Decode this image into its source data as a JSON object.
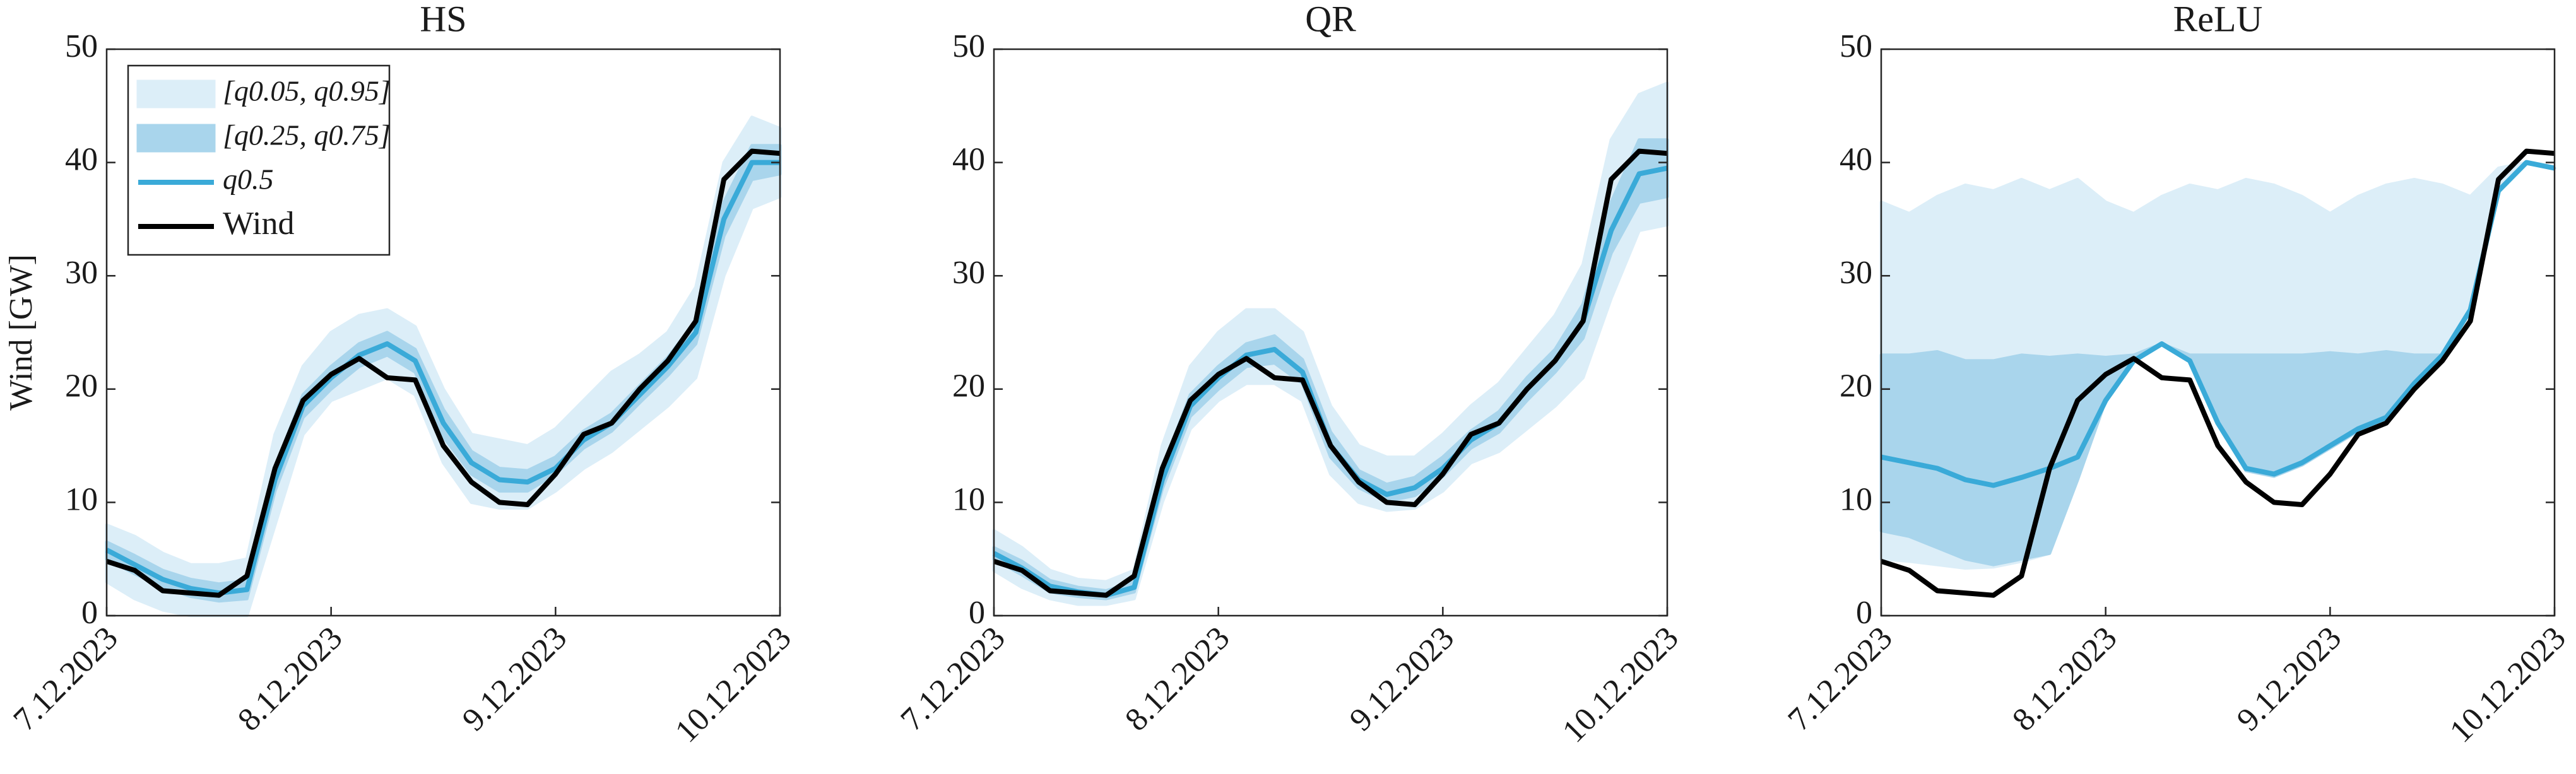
{
  "chart_data": [
    {
      "type": "line",
      "title": "HS",
      "ylabel": "Wind [GW]",
      "legend": true,
      "categories": [
        "7.12.2023",
        null,
        null,
        null,
        null,
        null,
        null,
        null,
        "8.12.2023",
        null,
        null,
        null,
        null,
        null,
        null,
        null,
        "9.12.2023",
        null,
        null,
        null,
        null,
        null,
        null,
        null,
        "10.12.2023"
      ],
      "ylim": [
        0,
        50
      ],
      "yticks": [
        0,
        10,
        20,
        30,
        40,
        50
      ],
      "series": [
        {
          "name": "[q0.05, q0.95]",
          "color": "#dceef8",
          "lower": [
            3,
            1.5,
            0.5,
            0,
            0,
            0,
            8,
            16,
            19,
            20,
            21,
            19.5,
            13.5,
            10,
            9.5,
            9.5,
            11,
            13,
            14.5,
            16.5,
            18.5,
            21,
            30,
            36,
            37
          ],
          "upper": [
            8,
            7,
            5.5,
            4.5,
            4.5,
            5,
            16,
            22,
            25,
            26.5,
            27,
            25.5,
            20,
            16,
            15.5,
            15,
            16.5,
            19,
            21.5,
            23,
            25,
            29,
            40,
            44,
            43
          ]
        },
        {
          "name": "[q0.25, q0.75]",
          "color": "#a9d5ec",
          "lower": [
            5,
            3.7,
            2.5,
            1.7,
            1.3,
            1.5,
            11,
            17.5,
            20,
            22,
            23,
            21.5,
            15.8,
            12.5,
            11,
            11,
            12.5,
            14.8,
            16.3,
            18.8,
            21.2,
            24,
            33.5,
            38.5,
            39
          ],
          "upper": [
            6.5,
            5.3,
            4,
            3.2,
            2.8,
            3.1,
            13,
            19.5,
            22,
            24,
            25,
            23.5,
            18.2,
            14.5,
            13,
            12.8,
            14,
            16.3,
            17.8,
            20.3,
            22.8,
            26,
            36.5,
            41.5,
            41.5
          ]
        },
        {
          "name": "q0.5",
          "color": "#3aaad8",
          "values": [
            5.8,
            4.5,
            3.2,
            2.4,
            2.0,
            2.3,
            12,
            18.5,
            21,
            23,
            24,
            22.5,
            17,
            13.5,
            12,
            11.8,
            13,
            15.5,
            17,
            19.5,
            22,
            25,
            35,
            40,
            40
          ]
        },
        {
          "name": "Wind",
          "color": "#000000",
          "values": [
            4.8,
            4.0,
            2.2,
            2.0,
            1.8,
            3.5,
            13,
            19,
            21.3,
            22.7,
            21,
            20.8,
            15,
            11.8,
            10,
            9.8,
            12.5,
            16,
            17,
            20,
            22.5,
            26,
            38.5,
            41,
            40.8
          ]
        }
      ]
    },
    {
      "type": "line",
      "title": "QR",
      "categories": [
        "7.12.2023",
        null,
        null,
        null,
        null,
        null,
        null,
        null,
        "8.12.2023",
        null,
        null,
        null,
        null,
        null,
        null,
        null,
        "9.12.2023",
        null,
        null,
        null,
        null,
        null,
        null,
        null,
        "10.12.2023"
      ],
      "ylim": [
        0,
        50
      ],
      "yticks": [
        0,
        10,
        20,
        30,
        40,
        50
      ],
      "series": [
        {
          "color": "#dceef8",
          "lower": [
            4,
            2.5,
            1.5,
            1.0,
            1.0,
            1.5,
            10,
            16.5,
            19,
            20.5,
            20.5,
            19,
            12.5,
            10,
            9.3,
            9.5,
            11,
            13.5,
            14.5,
            16.5,
            18.5,
            21,
            28,
            34,
            34.5
          ],
          "upper": [
            7.5,
            6,
            4,
            3.2,
            3,
            4,
            15,
            22,
            25,
            27,
            27,
            25,
            18.5,
            15,
            14,
            14,
            16,
            18.5,
            20.5,
            23.5,
            26.5,
            31,
            42,
            46,
            47
          ]
        },
        {
          "color": "#a9d5ec",
          "lower": [
            5,
            3.6,
            2.1,
            1.7,
            1.5,
            2.1,
            11.2,
            17.6,
            20,
            22,
            22.3,
            20.5,
            14,
            11.3,
            10.1,
            10.6,
            12.3,
            14.8,
            16.2,
            19,
            21.5,
            24.5,
            32,
            36.5,
            37
          ],
          "upper": [
            6,
            4.8,
            3.1,
            2.5,
            2.2,
            3,
            13,
            19.5,
            22,
            24,
            24.7,
            22.6,
            16.2,
            12.8,
            11.6,
            12.2,
            14,
            16.3,
            18,
            21,
            23.5,
            27.5,
            36.5,
            42,
            42
          ]
        },
        {
          "color": "#3aaad8",
          "values": [
            5.5,
            4.2,
            2.6,
            2.1,
            1.8,
            2.5,
            12,
            18.5,
            21,
            23,
            23.5,
            21.5,
            15,
            12,
            10.7,
            11.3,
            13,
            15.5,
            17,
            20,
            22.5,
            26,
            34,
            39,
            39.5
          ]
        },
        {
          "color": "#000000",
          "values": [
            4.8,
            4.0,
            2.2,
            2.0,
            1.8,
            3.5,
            13,
            19,
            21.3,
            22.7,
            21,
            20.8,
            15,
            11.8,
            10,
            9.8,
            12.5,
            16,
            17,
            20,
            22.5,
            26,
            38.5,
            41,
            40.8
          ]
        }
      ]
    },
    {
      "type": "line",
      "title": "ReLU",
      "categories": [
        "7.12.2023",
        null,
        null,
        null,
        null,
        null,
        null,
        null,
        "8.12.2023",
        null,
        null,
        null,
        null,
        null,
        null,
        null,
        "9.12.2023",
        null,
        null,
        null,
        null,
        null,
        null,
        null,
        "10.12.2023"
      ],
      "ylim": [
        0,
        50
      ],
      "yticks": [
        0,
        10,
        20,
        30,
        40,
        50
      ],
      "series": [
        {
          "color": "#dceef8",
          "lower": [
            5,
            4.8,
            4.5,
            4.2,
            4.3,
            4.8,
            5.5,
            12,
            19,
            22.5,
            24,
            22.5,
            17,
            12.8,
            12.3,
            13.3,
            14.8,
            16.3,
            17.3,
            20.3,
            22.8,
            27,
            37.5,
            40,
            39.5
          ],
          "upper": [
            36.5,
            35.5,
            37,
            38,
            37.5,
            38.5,
            37.5,
            38.5,
            36.5,
            35.5,
            37,
            38,
            37.5,
            38.5,
            38,
            37,
            35.5,
            37,
            38,
            38.5,
            38,
            37,
            39.5,
            40,
            39.5
          ]
        },
        {
          "color": "#a9d5ec",
          "lower": [
            7.5,
            7,
            6,
            5,
            4.5,
            5,
            5.5,
            12,
            19,
            22.5,
            24,
            22.5,
            17,
            12.8,
            12.3,
            13.3,
            14.8,
            16.3,
            17.3,
            20.3,
            22.8,
            27,
            37.5,
            40,
            39.5
          ],
          "upper": [
            23,
            23,
            23.3,
            22.5,
            22.5,
            23,
            22.8,
            23,
            22.8,
            23,
            24,
            23,
            23,
            23,
            23,
            23,
            23.2,
            23,
            23.3,
            23,
            23,
            27,
            37.5,
            40,
            39.5
          ]
        },
        {
          "color": "#3aaad8",
          "values": [
            14,
            13.5,
            13,
            12,
            11.5,
            12.2,
            13,
            14,
            19,
            22.5,
            24,
            22.5,
            17,
            13,
            12.5,
            13.5,
            15,
            16.5,
            17.5,
            20.5,
            23,
            27,
            37.5,
            40,
            39.5
          ]
        },
        {
          "color": "#000000",
          "values": [
            4.8,
            4.0,
            2.2,
            2.0,
            1.8,
            3.5,
            13,
            19,
            21.3,
            22.7,
            21,
            20.8,
            15,
            11.8,
            10,
            9.8,
            12.5,
            16,
            17,
            20,
            22.5,
            26,
            38.5,
            41,
            40.8
          ]
        }
      ]
    }
  ]
}
